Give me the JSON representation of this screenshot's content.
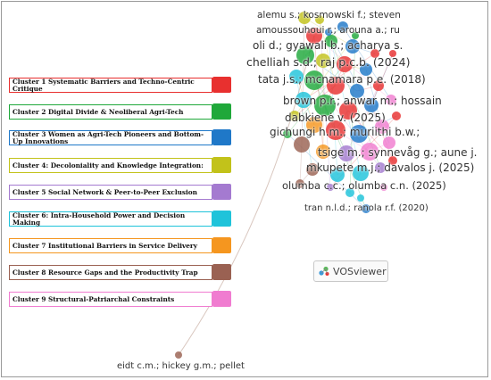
{
  "legend": {
    "items": [
      {
        "label": "Cluster 1 Systematic Barriers and Techno-Centric Critique",
        "color": "#e8302f"
      },
      {
        "label": "Cluster 2 Digital Divide & Neoliberal Agri-Tech",
        "color": "#1fa83a"
      },
      {
        "label": "Cluster 3 Women as Agri-Tech Pioneers and Bottom-Up Innovations",
        "color": "#1f78c8"
      },
      {
        "label": "Cluster 4: Decoloniality and Knowledge Integration:",
        "color": "#c2c21a"
      },
      {
        "label": "Cluster 5 Social Network & Peer-to-Peer Exclusion",
        "color": "#a47ad0"
      },
      {
        "label": "Cluster 6: Intra-Household Power and Decision Making",
        "color": "#1fc3da"
      },
      {
        "label": "Cluster 7 Institutional Barriers in Service Delivery",
        "color": "#f5961f"
      },
      {
        "label": "Cluster 8 Resource Gaps and the Productivity Trap",
        "color": "#9a6152"
      },
      {
        "label": "Cluster 9 Structural-Patriarchal Constraints",
        "color": "#f07cd0"
      }
    ]
  },
  "network_labels": [
    "alemu s.; kosmowski f.; steven",
    "amoussouhoui r.; arouna a.; ru",
    "oli d.; gyawali b.; acharya s.",
    "chelliah s.d.; raj p.c.b. (2024)",
    "tata j.s.; mcnamara p.e. (2018)",
    "brown p.r.; anwar m.; hossain",
    "dabkienė v. (2025)",
    "gichungi h.m.; muriithi b.w.;",
    "tsige m.; synnevåg g.; aune j.",
    "mkupete m.j.; davalos j. (2025)",
    "olumba c.c.; olumba c.n. (2025)",
    "tran n.l.d.; ranola r.f. (2020)",
    "eidt c.m.; hickey g.m.; pellet"
  ],
  "logo": {
    "text": "VOSviewer"
  }
}
